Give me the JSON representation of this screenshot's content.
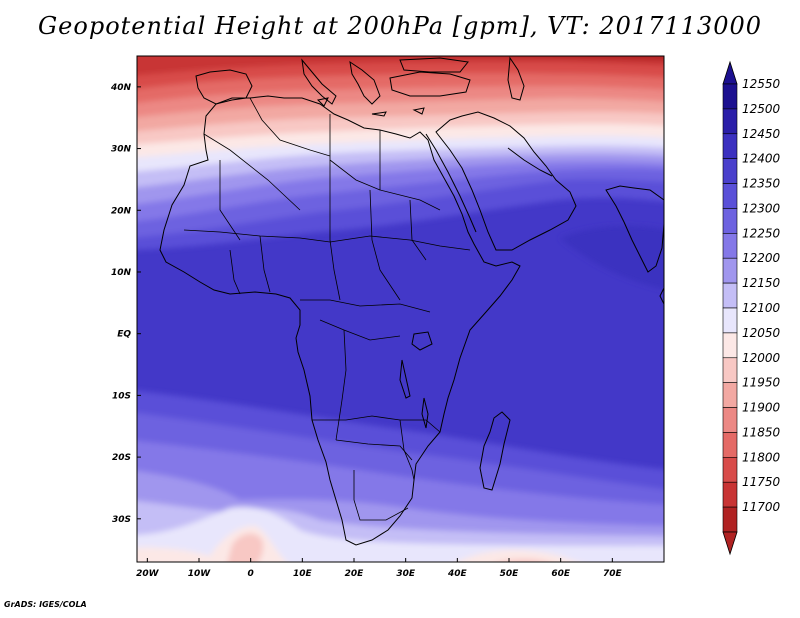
{
  "title": "Geopotential Height at 200hPa [gpm], VT: 2017113000",
  "footer": "GrADS: IGES/COLA",
  "colors": {
    "ocean_base": "#4338c8",
    "coast": "#000000"
  },
  "map": {
    "lon_range": [
      -22,
      80
    ],
    "lat_range": [
      -37,
      45
    ],
    "lon_ticks": [
      {
        "value": -20,
        "label": "20W"
      },
      {
        "value": -10,
        "label": "10W"
      },
      {
        "value": 0,
        "label": "0"
      },
      {
        "value": 10,
        "label": "10E"
      },
      {
        "value": 20,
        "label": "20E"
      },
      {
        "value": 30,
        "label": "30E"
      },
      {
        "value": 40,
        "label": "40E"
      },
      {
        "value": 50,
        "label": "50E"
      },
      {
        "value": 60,
        "label": "60E"
      },
      {
        "value": 70,
        "label": "70E"
      }
    ],
    "lat_ticks": [
      {
        "value": 40,
        "label": "40N"
      },
      {
        "value": 30,
        "label": "30N"
      },
      {
        "value": 20,
        "label": "20N"
      },
      {
        "value": 10,
        "label": "10N"
      },
      {
        "value": 0,
        "label": "EQ"
      },
      {
        "value": -10,
        "label": "10S"
      },
      {
        "value": -20,
        "label": "20S"
      },
      {
        "value": -30,
        "label": "30S"
      }
    ]
  },
  "colorbar": {
    "levels": [
      {
        "label": "12550",
        "color": "#1c1090"
      },
      {
        "label": "12500",
        "color": "#2a1ea8"
      },
      {
        "label": "12450",
        "color": "#3b30c0"
      },
      {
        "label": "12400",
        "color": "#4a40cc"
      },
      {
        "label": "12350",
        "color": "#5a50d8"
      },
      {
        "label": "12300",
        "color": "#6d62e0"
      },
      {
        "label": "12250",
        "color": "#8478e8"
      },
      {
        "label": "12200",
        "color": "#a096ee"
      },
      {
        "label": "12150",
        "color": "#c4bef6"
      },
      {
        "label": "12100",
        "color": "#e8e6fc"
      },
      {
        "label": "12050",
        "color": "#fce8e6"
      },
      {
        "label": "12000",
        "color": "#f8c8c4"
      },
      {
        "label": "11950",
        "color": "#f2a8a2"
      },
      {
        "label": "11900",
        "color": "#ec8884"
      },
      {
        "label": "11850",
        "color": "#e46a66"
      },
      {
        "label": "11800",
        "color": "#d84c4a"
      },
      {
        "label": "11750",
        "color": "#c83434"
      },
      {
        "label": "11700",
        "color": "#b02222"
      }
    ]
  }
}
